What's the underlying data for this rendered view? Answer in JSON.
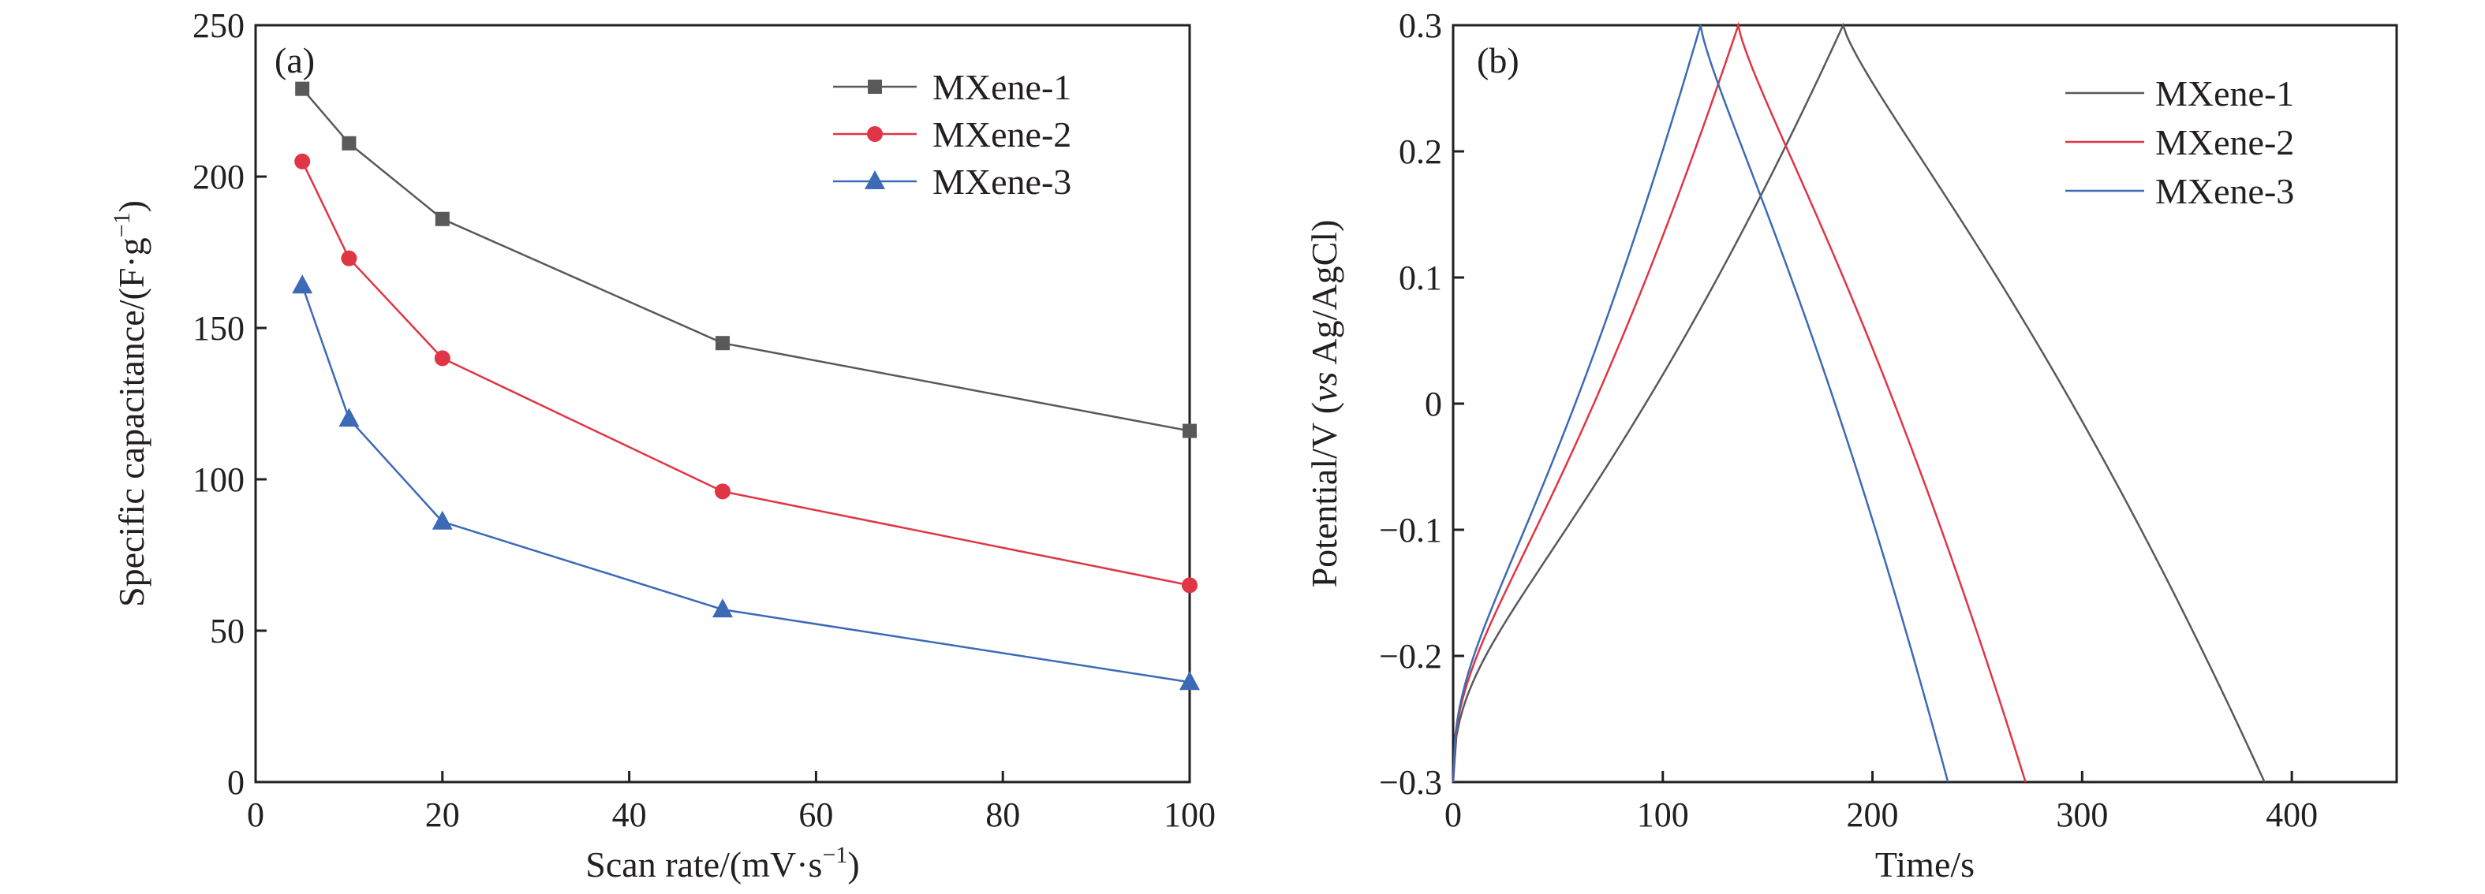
{
  "chart_data": [
    {
      "type": "line",
      "panel_label": "(a)",
      "xlabel": "Scan rate/(mV·s",
      "xlabel_sup": "−1",
      "xlabel_end": ")",
      "ylabel": "Specific capacitance/(F·g",
      "ylabel_sup": "−1",
      "ylabel_end": ")",
      "xlim": [
        0,
        100
      ],
      "ylim": [
        0,
        250
      ],
      "xticks": [
        "0",
        "20",
        "40",
        "60",
        "80",
        "100"
      ],
      "yticks": [
        "0",
        "50",
        "100",
        "150",
        "200",
        "250"
      ],
      "grid": false,
      "legend_position": "top-right",
      "x": [
        5,
        10,
        20,
        50,
        100
      ],
      "series": [
        {
          "name": "MXene-1",
          "color": "#595959",
          "marker": "square",
          "values": [
            229,
            211,
            186,
            145,
            116
          ]
        },
        {
          "name": "MXene-2",
          "color": "#e03544",
          "marker": "circle",
          "values": [
            205,
            173,
            140,
            96,
            65
          ]
        },
        {
          "name": "MXene-3",
          "color": "#3d6ab5",
          "marker": "triangle",
          "values": [
            164,
            120,
            86,
            57,
            33
          ]
        }
      ]
    },
    {
      "type": "line",
      "panel_label": "(b)",
      "xlabel": "Time/s",
      "ylabel": "Potential/V (",
      "ylabel_italic": "vs",
      "ylabel_end": " Ag/AgCl)",
      "xlim": [
        0,
        450
      ],
      "ylim": [
        -0.3,
        0.3
      ],
      "xticks": [
        "0",
        "100",
        "200",
        "300",
        "400"
      ],
      "yticks": [
        "−0.3",
        "−0.2",
        "−0.1",
        "0",
        "0.1",
        "0.2",
        "0.3"
      ],
      "grid": false,
      "legend_position": "top-right",
      "series": [
        {
          "name": "MXene-1",
          "color": "#595959",
          "charge_time": 186,
          "discharge_end": 387
        },
        {
          "name": "MXene-2",
          "color": "#e03544",
          "charge_time": 136,
          "discharge_end": 273
        },
        {
          "name": "MXene-3",
          "color": "#3d6ab5",
          "charge_time": 118,
          "discharge_end": 236
        }
      ]
    }
  ]
}
